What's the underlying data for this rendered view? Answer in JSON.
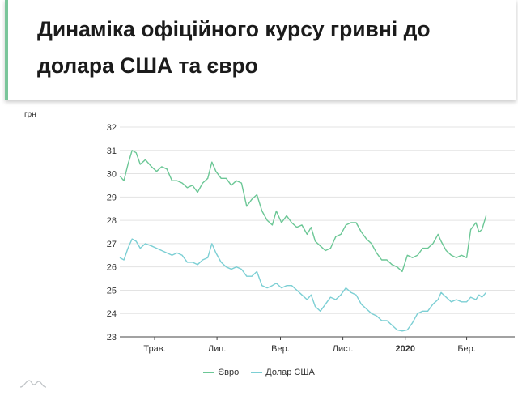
{
  "title": "Динаміка офіційного курсу гривні до долара США та євро",
  "colors": {
    "euro": "#6cc796",
    "usd": "#7ccfd4",
    "accent": "#7ac59a"
  },
  "chart_data": {
    "type": "line",
    "unit_label": "грн",
    "ylim": [
      23,
      32
    ],
    "y_ticks": [
      23,
      24,
      25,
      26,
      27,
      28,
      29,
      30,
      31,
      32
    ],
    "x_range": [
      "2019-03-28",
      "2020-04-17"
    ],
    "x_ticks": [
      {
        "date": "2019-05-01",
        "label": "Трав.",
        "bold": false
      },
      {
        "date": "2019-07-01",
        "label": "Лип.",
        "bold": false
      },
      {
        "date": "2019-09-01",
        "label": "Вер.",
        "bold": false
      },
      {
        "date": "2019-11-01",
        "label": "Лист.",
        "bold": false
      },
      {
        "date": "2020-01-01",
        "label": "2020",
        "bold": true
      },
      {
        "date": "2020-03-01",
        "label": "Бер.",
        "bold": false
      }
    ],
    "grid": true,
    "legend_position": "bottom",
    "series": [
      {
        "name": "Євро",
        "color_key": "euro",
        "points": [
          [
            "2019-03-28",
            29.9
          ],
          [
            "2019-04-01",
            29.7
          ],
          [
            "2019-04-05",
            30.4
          ],
          [
            "2019-04-09",
            31.0
          ],
          [
            "2019-04-13",
            30.9
          ],
          [
            "2019-04-17",
            30.4
          ],
          [
            "2019-04-22",
            30.6
          ],
          [
            "2019-04-28",
            30.3
          ],
          [
            "2019-05-03",
            30.1
          ],
          [
            "2019-05-08",
            30.3
          ],
          [
            "2019-05-13",
            30.2
          ],
          [
            "2019-05-18",
            29.7
          ],
          [
            "2019-05-23",
            29.7
          ],
          [
            "2019-05-28",
            29.6
          ],
          [
            "2019-06-02",
            29.4
          ],
          [
            "2019-06-07",
            29.5
          ],
          [
            "2019-06-12",
            29.2
          ],
          [
            "2019-06-17",
            29.6
          ],
          [
            "2019-06-22",
            29.8
          ],
          [
            "2019-06-26",
            30.5
          ],
          [
            "2019-06-30",
            30.1
          ],
          [
            "2019-07-05",
            29.8
          ],
          [
            "2019-07-10",
            29.8
          ],
          [
            "2019-07-15",
            29.5
          ],
          [
            "2019-07-20",
            29.7
          ],
          [
            "2019-07-25",
            29.6
          ],
          [
            "2019-07-30",
            28.6
          ],
          [
            "2019-08-04",
            28.9
          ],
          [
            "2019-08-09",
            29.1
          ],
          [
            "2019-08-14",
            28.4
          ],
          [
            "2019-08-19",
            28.0
          ],
          [
            "2019-08-24",
            27.8
          ],
          [
            "2019-08-28",
            28.4
          ],
          [
            "2019-09-02",
            27.9
          ],
          [
            "2019-09-07",
            28.2
          ],
          [
            "2019-09-12",
            27.9
          ],
          [
            "2019-09-17",
            27.7
          ],
          [
            "2019-09-22",
            27.8
          ],
          [
            "2019-09-27",
            27.4
          ],
          [
            "2019-10-01",
            27.7
          ],
          [
            "2019-10-05",
            27.1
          ],
          [
            "2019-10-10",
            26.9
          ],
          [
            "2019-10-15",
            26.7
          ],
          [
            "2019-10-20",
            26.8
          ],
          [
            "2019-10-25",
            27.3
          ],
          [
            "2019-10-30",
            27.4
          ],
          [
            "2019-11-04",
            27.8
          ],
          [
            "2019-11-09",
            27.9
          ],
          [
            "2019-11-14",
            27.9
          ],
          [
            "2019-11-19",
            27.5
          ],
          [
            "2019-11-24",
            27.2
          ],
          [
            "2019-11-29",
            27.0
          ],
          [
            "2019-12-04",
            26.6
          ],
          [
            "2019-12-09",
            26.3
          ],
          [
            "2019-12-14",
            26.3
          ],
          [
            "2019-12-19",
            26.1
          ],
          [
            "2019-12-24",
            26.0
          ],
          [
            "2019-12-29",
            25.8
          ],
          [
            "2020-01-03",
            26.5
          ],
          [
            "2020-01-08",
            26.4
          ],
          [
            "2020-01-13",
            26.5
          ],
          [
            "2020-01-18",
            26.8
          ],
          [
            "2020-01-23",
            26.8
          ],
          [
            "2020-01-28",
            27.0
          ],
          [
            "2020-02-02",
            27.4
          ],
          [
            "2020-02-05",
            27.1
          ],
          [
            "2020-02-10",
            26.7
          ],
          [
            "2020-02-15",
            26.5
          ],
          [
            "2020-02-20",
            26.4
          ],
          [
            "2020-02-25",
            26.5
          ],
          [
            "2020-03-01",
            26.4
          ],
          [
            "2020-03-05",
            27.6
          ],
          [
            "2020-03-10",
            27.9
          ],
          [
            "2020-03-13",
            27.5
          ],
          [
            "2020-03-16",
            27.6
          ],
          [
            "2020-03-20",
            28.2
          ]
        ]
      },
      {
        "name": "Долар США",
        "color_key": "usd",
        "points": [
          [
            "2019-03-28",
            26.4
          ],
          [
            "2019-04-01",
            26.3
          ],
          [
            "2019-04-05",
            26.8
          ],
          [
            "2019-04-09",
            27.2
          ],
          [
            "2019-04-13",
            27.1
          ],
          [
            "2019-04-17",
            26.8
          ],
          [
            "2019-04-22",
            27.0
          ],
          [
            "2019-04-28",
            26.9
          ],
          [
            "2019-05-03",
            26.8
          ],
          [
            "2019-05-08",
            26.7
          ],
          [
            "2019-05-13",
            26.6
          ],
          [
            "2019-05-18",
            26.5
          ],
          [
            "2019-05-23",
            26.6
          ],
          [
            "2019-05-28",
            26.5
          ],
          [
            "2019-06-02",
            26.2
          ],
          [
            "2019-06-07",
            26.2
          ],
          [
            "2019-06-12",
            26.1
          ],
          [
            "2019-06-17",
            26.3
          ],
          [
            "2019-06-22",
            26.4
          ],
          [
            "2019-06-26",
            27.0
          ],
          [
            "2019-06-30",
            26.6
          ],
          [
            "2019-07-05",
            26.2
          ],
          [
            "2019-07-10",
            26.0
          ],
          [
            "2019-07-15",
            25.9
          ],
          [
            "2019-07-20",
            26.0
          ],
          [
            "2019-07-25",
            25.9
          ],
          [
            "2019-07-30",
            25.6
          ],
          [
            "2019-08-04",
            25.6
          ],
          [
            "2019-08-09",
            25.8
          ],
          [
            "2019-08-14",
            25.2
          ],
          [
            "2019-08-19",
            25.1
          ],
          [
            "2019-08-24",
            25.2
          ],
          [
            "2019-08-28",
            25.3
          ],
          [
            "2019-09-02",
            25.1
          ],
          [
            "2019-09-07",
            25.2
          ],
          [
            "2019-09-12",
            25.2
          ],
          [
            "2019-09-17",
            25.0
          ],
          [
            "2019-09-22",
            24.8
          ],
          [
            "2019-09-27",
            24.6
          ],
          [
            "2019-10-01",
            24.8
          ],
          [
            "2019-10-05",
            24.3
          ],
          [
            "2019-10-10",
            24.1
          ],
          [
            "2019-10-15",
            24.4
          ],
          [
            "2019-10-20",
            24.7
          ],
          [
            "2019-10-25",
            24.6
          ],
          [
            "2019-10-30",
            24.8
          ],
          [
            "2019-11-04",
            25.1
          ],
          [
            "2019-11-09",
            24.9
          ],
          [
            "2019-11-14",
            24.8
          ],
          [
            "2019-11-19",
            24.4
          ],
          [
            "2019-11-24",
            24.2
          ],
          [
            "2019-11-29",
            24.0
          ],
          [
            "2019-12-04",
            23.9
          ],
          [
            "2019-12-09",
            23.7
          ],
          [
            "2019-12-14",
            23.7
          ],
          [
            "2019-12-19",
            23.5
          ],
          [
            "2019-12-24",
            23.3
          ],
          [
            "2019-12-29",
            23.25
          ],
          [
            "2020-01-03",
            23.3
          ],
          [
            "2020-01-08",
            23.6
          ],
          [
            "2020-01-13",
            24.0
          ],
          [
            "2020-01-18",
            24.1
          ],
          [
            "2020-01-23",
            24.1
          ],
          [
            "2020-01-28",
            24.4
          ],
          [
            "2020-02-02",
            24.6
          ],
          [
            "2020-02-05",
            24.9
          ],
          [
            "2020-02-10",
            24.7
          ],
          [
            "2020-02-15",
            24.5
          ],
          [
            "2020-02-20",
            24.6
          ],
          [
            "2020-02-25",
            24.5
          ],
          [
            "2020-03-01",
            24.5
          ],
          [
            "2020-03-05",
            24.7
          ],
          [
            "2020-03-10",
            24.6
          ],
          [
            "2020-03-13",
            24.8
          ],
          [
            "2020-03-16",
            24.7
          ],
          [
            "2020-03-20",
            24.9
          ]
        ]
      }
    ]
  }
}
